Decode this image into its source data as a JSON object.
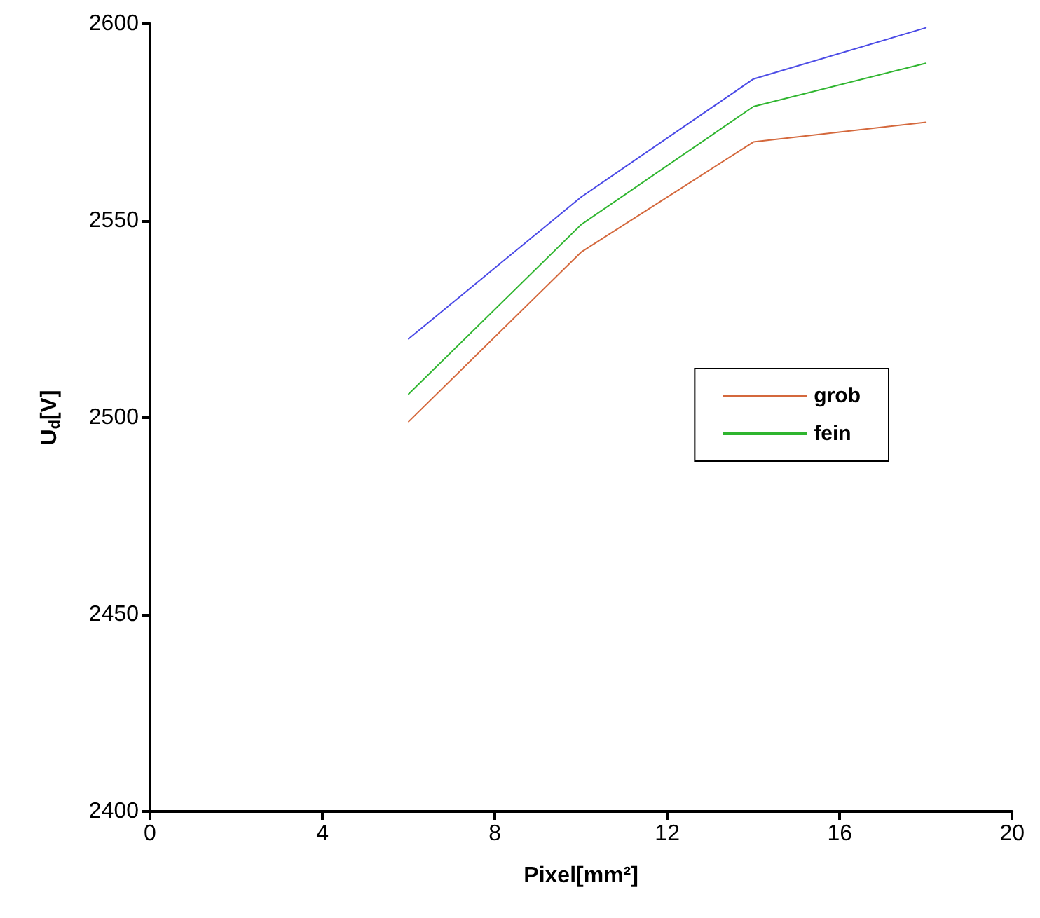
{
  "chart_data": {
    "type": "line",
    "xlabel": "Pixel[mm²]",
    "ylabel": "U$_{d}$[V]",
    "x": [
      6,
      10,
      14,
      18
    ],
    "series": [
      {
        "name": "grob",
        "color": "#d4683c",
        "values": [
          2499,
          2542,
          2570,
          2575
        ]
      },
      {
        "name": "fein",
        "color": "#2fb52f",
        "values": [
          2506,
          2549,
          2579,
          2590
        ]
      },
      {
        "color": "#4a4ae6",
        "values": [
          2520,
          2556,
          2586,
          2599
        ]
      }
    ],
    "xlim": [
      0,
      20
    ],
    "xticks": [
      0,
      4,
      8,
      12,
      16,
      20
    ],
    "ylim": [
      2400,
      2600
    ],
    "yticks": [
      2400,
      2450,
      2500,
      2550,
      2600
    ],
    "grid": false,
    "legend": "right",
    "marker": "none",
    "line_style": "solid"
  }
}
